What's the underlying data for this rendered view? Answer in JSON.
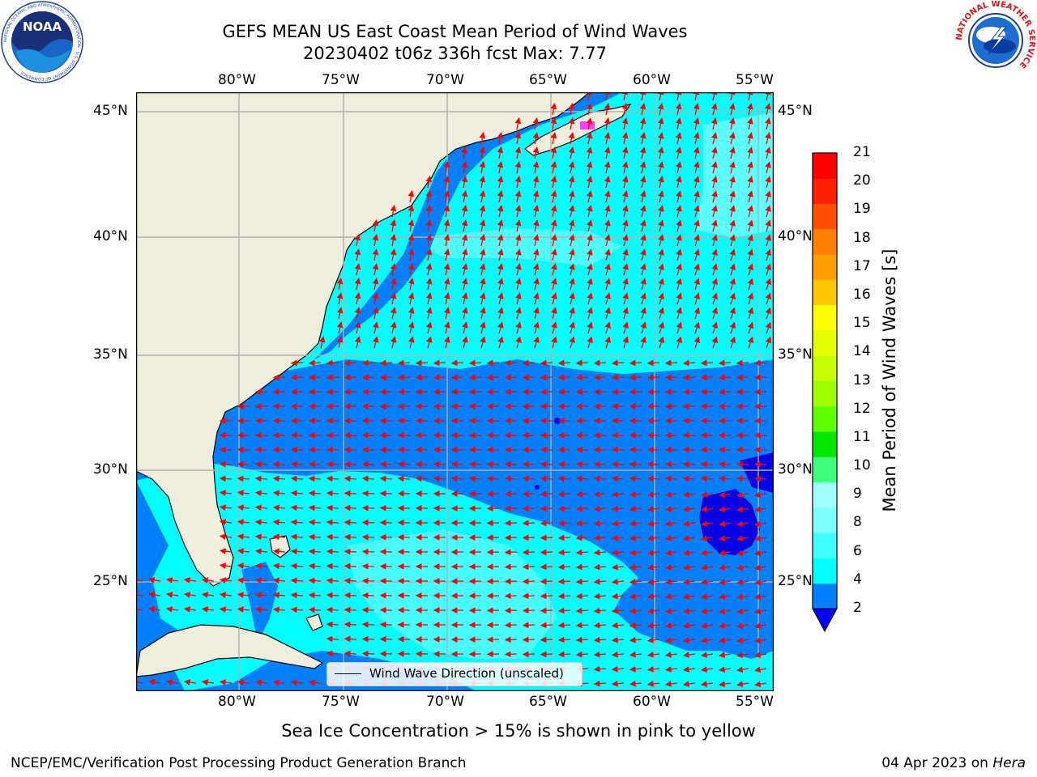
{
  "title": {
    "line1": "GEFS MEAN US East Coast Mean Period of Wind Waves",
    "line2": "20230402 t06z 336h fcst   Max: 7.77"
  },
  "logos": {
    "noaa_text": "NOAA",
    "noaa_ring": "NATIONAL OCEANIC AND ATMOSPHERIC ADMINISTRATION · U.S. DEPARTMENT OF COMMERCE",
    "nws_ring": "NATIONAL WEATHER SERVICE"
  },
  "map": {
    "lon_labels": [
      "80°W",
      "75°W",
      "70°W",
      "65°W",
      "60°W",
      "55°W"
    ],
    "lat_labels": [
      "45°N",
      "40°N",
      "35°N",
      "30°N",
      "25°N"
    ],
    "lon_range": [
      -85,
      -54.5
    ],
    "lat_range": [
      20.5,
      46
    ],
    "gridlines": true,
    "colors": {
      "land": "#efeddb",
      "period_2_4": "#0080ff",
      "period_4_6": "#00ffff",
      "period_6_8": "#40ffff",
      "period_below_2": "#0000e6",
      "arrows": "#ff0000",
      "sea_ice": "#ff40ff"
    },
    "legend_label": "Wind Wave Direction (unscaled)"
  },
  "colorbar": {
    "label": "Mean Period of Wind Waves [s]",
    "ticks": [
      "2",
      "4",
      "6",
      "8",
      "9",
      "10",
      "11",
      "12",
      "13",
      "14",
      "15",
      "16",
      "17",
      "18",
      "19",
      "20",
      "21"
    ],
    "colors": [
      "#0080ff",
      "#00ffff",
      "#40ffff",
      "#80ffff",
      "#a0ffff",
      "#40ff80",
      "#00e600",
      "#60ff00",
      "#a0ff00",
      "#c8ff00",
      "#e6ff00",
      "#ffff00",
      "#ffc800",
      "#ffa000",
      "#ff8000",
      "#ff5000",
      "#ff2000",
      "#ff0000"
    ],
    "under_color": "#0000ff"
  },
  "sea_ice_note": "Sea Ice Concentration > 15% is shown in pink to yellow",
  "footer": {
    "left": "NCEP/EMC/Verification Post Processing Product Generation Branch",
    "date": "04 Apr 2023 on ",
    "machine": "Hera"
  }
}
